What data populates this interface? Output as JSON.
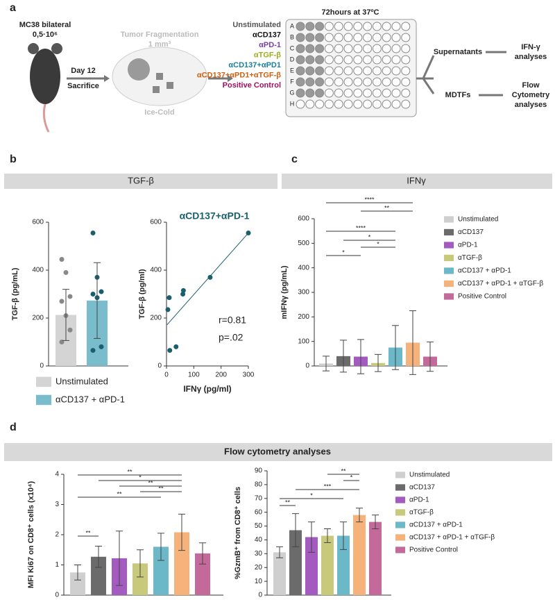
{
  "panels": {
    "a": "a",
    "b": "b",
    "c": "c",
    "d": "d"
  },
  "sections": {
    "tgf": "TGF-β",
    "ifn": "IFNγ",
    "flow": "Flow cytometry analyses"
  },
  "schematic": {
    "mouse": [
      "MC38 bilateral",
      "0,5·10⁶"
    ],
    "step": [
      "Day 12",
      "Sacrifice"
    ],
    "fragment": [
      "Tumor Fragmentation",
      "1 mm³"
    ],
    "cold": "Ice-Cold",
    "incubation": "72hours at 37ºC",
    "conditions": [
      {
        "text": "Unstimulated",
        "color": "#555555"
      },
      {
        "text": "αCD137",
        "color": "#111111"
      },
      {
        "text": "αPD-1",
        "color": "#7b3fa0"
      },
      {
        "text": "αTGF-β",
        "color": "#9aaf1a"
      },
      {
        "text": "αCD137+αPD1",
        "color": "#1a7f9a"
      },
      {
        "text": "αCD137+αPD1+αTGF-β",
        "color": "#d06010"
      },
      {
        "text": "Positive Control",
        "color": "#a01060"
      }
    ],
    "rows": [
      "A",
      "B",
      "C",
      "D",
      "E",
      "F",
      "G",
      "H"
    ],
    "supernatants": "Supernatants",
    "ifn_analyses": [
      "IFN-γ",
      "analyses"
    ],
    "mdtfs": "MDTFs",
    "flow_analyses": [
      "Flow",
      "Cytometry",
      "analyses"
    ]
  },
  "chart_data": [
    {
      "type": "bar",
      "ylabel": "TGF-β (pg/mL)",
      "categories": [
        "Unstimulated",
        "αCD137 + αPD-1"
      ],
      "values": [
        213,
        273
      ],
      "errors": [
        107,
        158
      ],
      "colors": [
        "#d4d4d4",
        "#79bccb"
      ],
      "points": [
        [
          445,
          390,
          290,
          270,
          210,
          150,
          100
        ],
        [
          555,
          370,
          310,
          300,
          285,
          80,
          65
        ]
      ],
      "ylim": [
        0,
        600
      ],
      "yticks": [
        0,
        200,
        400,
        600
      ]
    },
    {
      "type": "scatter",
      "title": "αCD137+αPD-1",
      "xlabel": "IFNγ (pg/ml)",
      "ylabel": "TGF-β (pg/ml)",
      "color": "#1a5f6e",
      "x": [
        5,
        10,
        12,
        35,
        60,
        62,
        160,
        300
      ],
      "y": [
        235,
        285,
        65,
        80,
        300,
        315,
        370,
        555
      ],
      "trend_line": {
        "x": [
          2,
          300
        ],
        "y": [
          172,
          555
        ]
      },
      "annotations": [
        "r=0.81",
        "p=.02"
      ],
      "xlim": [
        0,
        300
      ],
      "xticks": [
        0,
        100,
        200,
        300
      ],
      "ylim": [
        0,
        600
      ],
      "yticks": [
        0,
        200,
        400,
        600
      ]
    },
    {
      "type": "bar",
      "ylabel": "mIFNγ (pg/mL)",
      "categories": [
        "Unstimulated",
        "αCD137",
        "αPD-1",
        "αTGF-β",
        "αCD137 + αPD-1",
        "αCD137 + αPD-1 + αTGF-β",
        "Positive Control"
      ],
      "values": [
        10,
        40,
        38,
        12,
        75,
        95,
        38
      ],
      "errors": [
        30,
        65,
        70,
        35,
        90,
        130,
        60
      ],
      "colors": [
        "#cfcfcf",
        "#6b6b6b",
        "#a35bbf",
        "#c8c97a",
        "#6ab8c8",
        "#f5b27a",
        "#c46a9a"
      ],
      "significance": [
        "****",
        "**",
        "****",
        "*",
        "*",
        "*"
      ],
      "ylim": [
        0,
        600
      ],
      "yticks": [
        0,
        100,
        200,
        300,
        400,
        500,
        600
      ]
    },
    {
      "type": "bar",
      "ylabel": "MFI Ki67 on CD8⁺ cells (x10⁴)",
      "values": [
        0.75,
        1.27,
        1.22,
        1.05,
        1.6,
        2.08,
        1.38
      ],
      "errors": [
        0.25,
        0.35,
        0.9,
        0.45,
        0.45,
        0.6,
        0.35
      ],
      "colors": [
        "#cfcfcf",
        "#6b6b6b",
        "#a35bbf",
        "#c8c97a",
        "#6ab8c8",
        "#f5b27a",
        "#c46a9a"
      ],
      "significance": [
        "**",
        "*",
        "**",
        "**",
        "**",
        "**"
      ],
      "ylim": [
        0,
        4
      ],
      "yticks": [
        0,
        1,
        2,
        3,
        4
      ]
    },
    {
      "type": "bar",
      "ylabel": "%GzmB⁺ from CD8⁺ cells",
      "categories": [
        "Unstimulated",
        "αCD137",
        "αPD-1",
        "αTGF-β",
        "αCD137 + αPD-1",
        "αCD137 + αPD-1 + αTGF-β",
        "Positive Control"
      ],
      "values": [
        31,
        47,
        42,
        43,
        43,
        58,
        53
      ],
      "errors": [
        4,
        12,
        11,
        5,
        10,
        5,
        5
      ],
      "colors": [
        "#cfcfcf",
        "#6b6b6b",
        "#a35bbf",
        "#c8c97a",
        "#6ab8c8",
        "#f5b27a",
        "#c46a9a"
      ],
      "significance": [
        "**",
        "*",
        "***",
        "*",
        "**"
      ],
      "ylim": [
        0,
        90
      ],
      "yticks": [
        0,
        10,
        20,
        30,
        40,
        50,
        60,
        70,
        80,
        90
      ]
    }
  ]
}
